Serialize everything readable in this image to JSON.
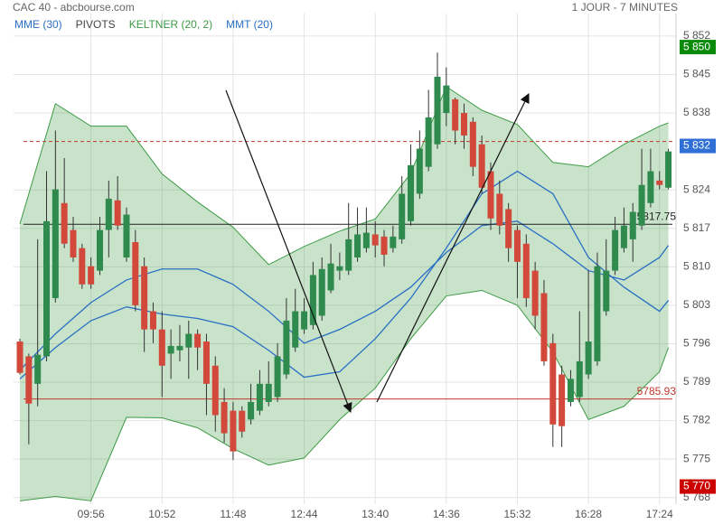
{
  "header": {
    "title": "CAC 40 - abcbourse.com",
    "period": "1 JOUR - 7 MINUTES"
  },
  "chart_data": {
    "type": "candlestick",
    "x": [
      "09:00",
      "09:07",
      "09:14",
      "09:21",
      "09:28",
      "09:35",
      "09:42",
      "09:49",
      "09:56",
      "10:03",
      "10:10",
      "10:17",
      "10:24",
      "10:31",
      "10:38",
      "10:45",
      "10:52",
      "10:59",
      "11:06",
      "11:13",
      "11:20",
      "11:27",
      "11:34",
      "11:41",
      "11:48",
      "11:55",
      "12:02",
      "12:09",
      "12:16",
      "12:23",
      "12:30",
      "12:37",
      "12:44",
      "12:51",
      "12:58",
      "13:05",
      "13:12",
      "13:19",
      "13:26",
      "13:33",
      "13:40",
      "13:47",
      "13:54",
      "14:01",
      "14:08",
      "14:15",
      "14:22",
      "14:29",
      "14:36",
      "14:43",
      "14:50",
      "14:57",
      "15:04",
      "15:11",
      "15:18",
      "15:25",
      "15:32",
      "15:39",
      "15:46",
      "15:53",
      "16:00",
      "16:07",
      "16:14",
      "16:21",
      "16:28",
      "16:35",
      "16:42",
      "16:49",
      "16:56",
      "17:03",
      "17:10",
      "17:17",
      "17:24",
      "17:31"
    ],
    "open": [
      5796.4,
      5793.7,
      5788.7,
      5793.7,
      5804.3,
      5821.6,
      5816.7,
      5813.4,
      5810.1,
      5809.3,
      5816.7,
      5822.1,
      5811.7,
      5814.5,
      5810.1,
      5801.9,
      5798.6,
      5794.2,
      5794.8,
      5795.3,
      5797.8,
      5796.4,
      5792.0,
      5785.4,
      5783.8,
      5783.8,
      5782.2,
      5783.8,
      5785.4,
      5786.3,
      5790.4,
      5795.3,
      5798.6,
      5799.4,
      5801.1,
      5805.7,
      5809.3,
      5809.3,
      5811.7,
      5813.4,
      5815.9,
      5815.5,
      5813.4,
      5815.0,
      5818.3,
      5823.3,
      5828.2,
      5832.3,
      5838.0,
      5840.5,
      5838.0,
      5836.4,
      5832.3,
      5827.4,
      5823.3,
      5820.5,
      5816.7,
      5814.2,
      5809.3,
      5805.2,
      5796.1,
      5790.4,
      5785.4,
      5786.3,
      5790.4,
      5792.8,
      5801.9,
      5809.3,
      5813.4,
      5815.0,
      5817.5,
      5821.6,
      5825.7,
      5824.4
    ],
    "high": [
      5796.9,
      5794.2,
      5815.0,
      5827.4,
      5834.8,
      5829.8,
      5819.1,
      5814.2,
      5811.7,
      5819.1,
      5825.7,
      5826.5,
      5820.8,
      5816.7,
      5811.7,
      5803.5,
      5801.9,
      5798.6,
      5799.4,
      5800.2,
      5798.6,
      5797.8,
      5793.7,
      5787.9,
      5785.4,
      5784.6,
      5788.7,
      5791.2,
      5792.8,
      5796.1,
      5804.3,
      5806.0,
      5804.3,
      5810.9,
      5811.7,
      5814.2,
      5812.6,
      5821.6,
      5820.8,
      5820.8,
      5818.3,
      5816.7,
      5817.5,
      5826.5,
      5832.3,
      5834.8,
      5842.2,
      5849.0,
      5846.3,
      5840.8,
      5839.7,
      5837.2,
      5833.9,
      5829.0,
      5825.7,
      5821.6,
      5817.5,
      5815.9,
      5810.9,
      5807.6,
      5797.8,
      5792.0,
      5791.2,
      5801.9,
      5809.3,
      5812.6,
      5815.0,
      5819.1,
      5820.8,
      5821.6,
      5831.5,
      5831.5,
      5827.4,
      5831.5
    ],
    "low": [
      5790.4,
      5777.7,
      5784.6,
      5792.8,
      5803.5,
      5813.4,
      5810.9,
      5806.0,
      5806.0,
      5808.5,
      5811.7,
      5816.7,
      5810.9,
      5801.9,
      5794.5,
      5796.1,
      5786.3,
      5789.6,
      5792.8,
      5789.6,
      5791.2,
      5783.0,
      5780.0,
      5778.0,
      5774.8,
      5778.9,
      5781.3,
      5783.0,
      5784.6,
      5785.4,
      5789.6,
      5794.5,
      5797.8,
      5798.6,
      5800.2,
      5805.2,
      5807.6,
      5808.5,
      5810.9,
      5812.6,
      5811.7,
      5810.1,
      5812.6,
      5814.2,
      5817.5,
      5822.4,
      5827.4,
      5831.5,
      5835.6,
      5832.3,
      5831.5,
      5826.5,
      5823.3,
      5816.7,
      5815.9,
      5810.9,
      5804.3,
      5802.7,
      5798.6,
      5792.0,
      5777.2,
      5777.2,
      5784.6,
      5785.4,
      5789.6,
      5792.0,
      5801.1,
      5808.5,
      5812.6,
      5810.9,
      5816.7,
      5820.8,
      5824.1,
      5824.1
    ],
    "close": [
      5790.7,
      5785.1,
      5794.0,
      5818.3,
      5824.1,
      5814.2,
      5811.7,
      5806.8,
      5806.8,
      5816.7,
      5822.4,
      5817.5,
      5819.5,
      5803.0,
      5798.6,
      5798.6,
      5792.0,
      5795.6,
      5795.6,
      5797.8,
      5795.3,
      5788.7,
      5783.0,
      5779.7,
      5776.4,
      5780.0,
      5785.4,
      5788.7,
      5788.7,
      5793.7,
      5800.2,
      5801.9,
      5801.9,
      5808.5,
      5809.6,
      5810.6,
      5810.1,
      5815.0,
      5815.9,
      5816.2,
      5813.9,
      5812.2,
      5815.5,
      5823.3,
      5828.5,
      5831.5,
      5837.2,
      5844.6,
      5843.0,
      5834.8,
      5833.9,
      5828.2,
      5824.4,
      5818.8,
      5817.5,
      5813.4,
      5810.9,
      5804.3,
      5801.1,
      5792.8,
      5781.3,
      5781.0,
      5789.6,
      5792.8,
      5796.4,
      5810.1,
      5809.3,
      5816.7,
      5817.5,
      5820.0,
      5824.9,
      5827.4,
      5824.9,
      5831.0
    ],
    "up_color": "#2f8a4e",
    "down_color": "#d2493b",
    "xlim": [
      "08:55",
      "17:37"
    ],
    "xticks": [
      "09:56",
      "10:52",
      "11:48",
      "12:44",
      "13:40",
      "14:36",
      "15:32",
      "16:28",
      "17:24"
    ],
    "ylim": [
      5766.8,
      5856.1
    ],
    "yticks": [
      {
        "value": 5768,
        "label": "5 768"
      },
      {
        "value": 5775,
        "label": "5 775"
      },
      {
        "value": 5782,
        "label": "5 782"
      },
      {
        "value": 5789,
        "label": "5 789"
      },
      {
        "value": 5796,
        "label": "5 796"
      },
      {
        "value": 5803,
        "label": "5 803"
      },
      {
        "value": 5810,
        "label": "5 810"
      },
      {
        "value": 5817,
        "label": "5 817"
      },
      {
        "value": 5824,
        "label": "5 824"
      },
      {
        "value": 5838,
        "label": "5 838"
      },
      {
        "value": 5845,
        "label": "5 845"
      },
      {
        "value": 5852,
        "label": "5 852"
      }
    ],
    "grid": true,
    "series": [
      {
        "name": "MME (30)",
        "color": "#2a6fc4",
        "x": [
          "09:00",
          "09:28",
          "09:56",
          "10:24",
          "10:52",
          "11:20",
          "11:48",
          "12:16",
          "12:44",
          "13:12",
          "13:40",
          "14:08",
          "14:36",
          "15:04",
          "15:32",
          "16:00",
          "16:28",
          "16:56",
          "17:24",
          "17:31"
        ],
        "values": [
          5791.2,
          5797.8,
          5803.5,
          5807.6,
          5809.6,
          5809.6,
          5806.8,
          5801.9,
          5796.1,
          5798.6,
          5801.9,
          5806.3,
          5812.6,
          5817.5,
          5818.3,
          5814.2,
          5809.3,
          5807.6,
          5811.7,
          5813.9
        ]
      },
      {
        "name": "PIVOTS",
        "color": "#444444",
        "levels": [
          {
            "value": 5832.8,
            "color": "#c0392b",
            "dashed": true,
            "labeled": false
          },
          {
            "value": 5817.75,
            "color": "#222222",
            "dashed": false,
            "labeled": true
          },
          {
            "value": 5785.93,
            "color": "#c0392b",
            "dashed": false,
            "labeled": true
          }
        ]
      },
      {
        "name": "KELTNER (20, 2)",
        "color": "#3d9a45",
        "x": [
          "09:00",
          "09:28",
          "09:56",
          "10:24",
          "10:52",
          "11:20",
          "11:48",
          "12:16",
          "12:44",
          "13:12",
          "13:40",
          "14:08",
          "14:36",
          "15:04",
          "15:32",
          "16:00",
          "16:28",
          "16:56",
          "17:24",
          "17:31"
        ],
        "upper": [
          5817.8,
          5839.7,
          5835.6,
          5835.6,
          5826.9,
          5821.8,
          5817.2,
          5810.4,
          5813.7,
          5816.5,
          5818.7,
          5827.0,
          5842.8,
          5838.5,
          5835.9,
          5829.0,
          5828.2,
          5832.3,
          5835.6,
          5836.2
        ],
        "lower": [
          5767.4,
          5768.2,
          5767.4,
          5782.6,
          5782.5,
          5780.7,
          5776.9,
          5773.9,
          5775.2,
          5782.2,
          5787.9,
          5796.9,
          5804.7,
          5805.7,
          5803.0,
          5794.5,
          5782.2,
          5784.6,
          5790.9,
          5795.3
        ]
      },
      {
        "name": "MMT (20)",
        "color": "#2a6fc4",
        "x": [
          "09:00",
          "09:28",
          "09:56",
          "10:24",
          "10:52",
          "11:20",
          "11:48",
          "12:16",
          "12:44",
          "13:12",
          "13:40",
          "14:08",
          "14:36",
          "15:04",
          "15:32",
          "16:00",
          "16:28",
          "16:56",
          "17:24",
          "17:31"
        ],
        "values": [
          5789.6,
          5795.3,
          5800.2,
          5802.7,
          5801.4,
          5800.6,
          5799.1,
          5794.8,
          5789.9,
          5790.9,
          5796.9,
          5804.3,
          5813.4,
          5823.3,
          5827.4,
          5823.3,
          5811.7,
          5806.3,
          5801.9,
          5803.9
        ]
      }
    ],
    "price_tags": [
      {
        "value": 5850,
        "label": "5 850",
        "color": "#0a8a0a"
      },
      {
        "value": 5832,
        "label": "5 832",
        "color": "#2f6fd6"
      },
      {
        "value": 5770,
        "label": "5 770",
        "color": "#cc0000"
      }
    ]
  }
}
